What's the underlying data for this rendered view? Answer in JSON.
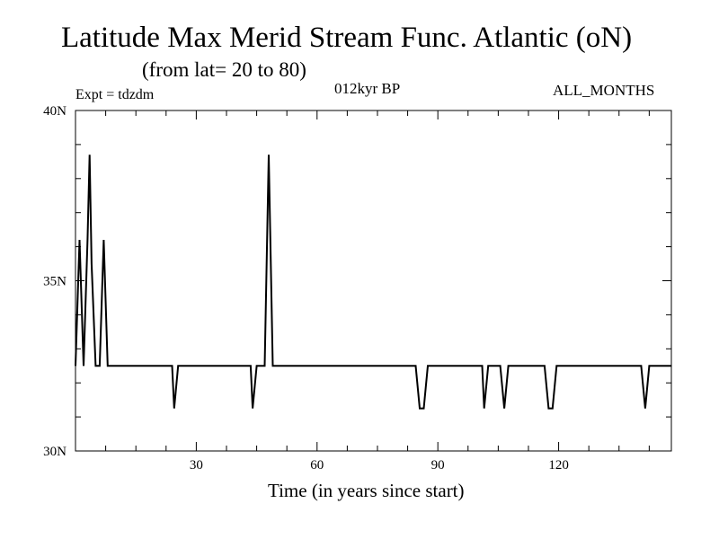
{
  "header": {
    "title": "Latitude Max Merid Stream Func. Atlantic (oN)",
    "subtitle": "(from lat= 20 to 80)",
    "expt": "Expt = tdzdm",
    "period": "012kyr BP",
    "months": "ALL_MONTHS"
  },
  "chart_data": {
    "type": "line",
    "title": "Latitude Max Merid Stream Func. Atlantic (oN)",
    "subtitle": "(from lat= 20 to 80)",
    "xlabel": "Time (in years since start)",
    "ylabel": "",
    "xlim": [
      0,
      148
    ],
    "ylim": [
      30,
      40
    ],
    "x_ticks": [
      30,
      60,
      90,
      120
    ],
    "x_tick_labels": [
      "30",
      "60",
      "90",
      "120"
    ],
    "y_ticks": [
      30,
      35,
      40
    ],
    "y_tick_labels": [
      "30N",
      "35N",
      "40N"
    ],
    "grid": false,
    "series": [
      {
        "color": "#000000",
        "points": [
          [
            0,
            32.5
          ],
          [
            1,
            36.2
          ],
          [
            2,
            32.5
          ],
          [
            3,
            36.2
          ],
          [
            3.5,
            38.7
          ],
          [
            4,
            35.5
          ],
          [
            5,
            32.5
          ],
          [
            6,
            32.5
          ],
          [
            7,
            36.2
          ],
          [
            8,
            32.5
          ],
          [
            24,
            32.5
          ],
          [
            24.5,
            31.25
          ],
          [
            25.5,
            32.5
          ],
          [
            43.5,
            32.5
          ],
          [
            44,
            31.25
          ],
          [
            45,
            32.5
          ],
          [
            47,
            32.5
          ],
          [
            48,
            38.7
          ],
          [
            49,
            32.5
          ],
          [
            84.5,
            32.5
          ],
          [
            85.5,
            31.25
          ],
          [
            86.5,
            31.25
          ],
          [
            87.5,
            32.5
          ],
          [
            101,
            32.5
          ],
          [
            101.5,
            31.25
          ],
          [
            102.5,
            32.5
          ],
          [
            105.5,
            32.5
          ],
          [
            106.5,
            31.25
          ],
          [
            107.5,
            32.5
          ],
          [
            116.5,
            32.5
          ],
          [
            117.5,
            31.25
          ],
          [
            118.5,
            31.25
          ],
          [
            119.5,
            32.5
          ],
          [
            140.5,
            32.5
          ],
          [
            141.5,
            31.25
          ],
          [
            142.5,
            32.5
          ],
          [
            148,
            32.5
          ]
        ]
      }
    ]
  }
}
